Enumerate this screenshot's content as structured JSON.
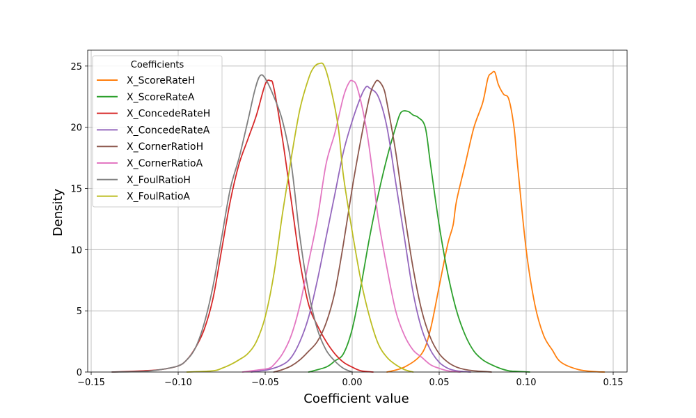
{
  "chart_data": {
    "type": "line",
    "subtype": "kde-density",
    "xlabel": "Coefficient value",
    "ylabel": "Density",
    "xlim": [
      -0.152,
      0.158
    ],
    "ylim": [
      0,
      26.3
    ],
    "xticks": [
      -0.15,
      -0.1,
      -0.05,
      0.0,
      0.05,
      0.1,
      0.15
    ],
    "xtick_labels": [
      "−0.15",
      "−0.10",
      "−0.05",
      "0.00",
      "0.05",
      "0.10",
      "0.15"
    ],
    "yticks": [
      0,
      5,
      10,
      15,
      20,
      25
    ],
    "ytick_labels": [
      "0",
      "5",
      "10",
      "15",
      "20",
      "25"
    ],
    "grid": true,
    "legend": {
      "title": "Coefficients",
      "placement": "top-left"
    },
    "series": [
      {
        "name": "X_ScoreRateH",
        "color": "#ff7f0e",
        "x": [
          0.02,
          0.03,
          0.04,
          0.045,
          0.05,
          0.055,
          0.058,
          0.06,
          0.065,
          0.07,
          0.075,
          0.078,
          0.08,
          0.082,
          0.084,
          0.087,
          0.09,
          0.093,
          0.095,
          0.1,
          0.105,
          0.11,
          0.115,
          0.12,
          0.13,
          0.14,
          0.145
        ],
        "y": [
          0.0,
          0.4,
          1.5,
          3.5,
          7.0,
          10.5,
          12.0,
          14.0,
          17.0,
          20.0,
          22.0,
          24.0,
          24.4,
          24.5,
          23.5,
          22.7,
          22.3,
          20.0,
          17.0,
          10.0,
          5.5,
          3.0,
          1.8,
          0.8,
          0.2,
          0.03,
          0.0
        ]
      },
      {
        "name": "X_ScoreRateA",
        "color": "#2ca02c",
        "x": [
          -0.025,
          -0.015,
          -0.01,
          -0.005,
          0.0,
          0.005,
          0.01,
          0.015,
          0.02,
          0.025,
          0.028,
          0.032,
          0.035,
          0.038,
          0.042,
          0.045,
          0.05,
          0.055,
          0.06,
          0.065,
          0.07,
          0.075,
          0.08,
          0.085,
          0.09,
          0.095,
          0.102
        ],
        "y": [
          0.0,
          0.4,
          0.9,
          1.5,
          3.5,
          7.0,
          11.0,
          14.5,
          17.5,
          20.0,
          21.2,
          21.3,
          21.0,
          20.8,
          20.0,
          17.0,
          12.0,
          8.0,
          5.0,
          3.0,
          1.7,
          1.0,
          0.6,
          0.3,
          0.1,
          0.05,
          0.0
        ]
      },
      {
        "name": "X_ConcedeRateH",
        "color": "#d62728",
        "x": [
          -0.138,
          -0.12,
          -0.11,
          -0.1,
          -0.095,
          -0.09,
          -0.085,
          -0.08,
          -0.075,
          -0.07,
          -0.065,
          -0.06,
          -0.055,
          -0.05,
          -0.047,
          -0.045,
          -0.04,
          -0.035,
          -0.03,
          -0.025,
          -0.02,
          -0.015,
          -0.01,
          -0.005,
          0.0,
          0.005,
          0.012
        ],
        "y": [
          0.0,
          0.1,
          0.2,
          0.5,
          1.0,
          2.0,
          3.5,
          6.0,
          10.0,
          14.0,
          17.0,
          19.0,
          21.0,
          23.5,
          23.8,
          23.2,
          19.0,
          14.0,
          9.0,
          5.5,
          3.8,
          2.5,
          1.5,
          0.8,
          0.4,
          0.1,
          0.0
        ]
      },
      {
        "name": "X_ConcedeRateA",
        "color": "#9467bd",
        "x": [
          -0.058,
          -0.048,
          -0.04,
          -0.035,
          -0.03,
          -0.025,
          -0.02,
          -0.015,
          -0.01,
          -0.005,
          0.0,
          0.005,
          0.008,
          0.01,
          0.015,
          0.02,
          0.025,
          0.03,
          0.035,
          0.04,
          0.045,
          0.05,
          0.055,
          0.06,
          0.068
        ],
        "y": [
          0.0,
          0.2,
          0.6,
          1.2,
          2.5,
          4.5,
          7.5,
          11.0,
          14.5,
          18.0,
          20.5,
          22.5,
          23.3,
          23.2,
          22.5,
          20.0,
          15.5,
          11.0,
          6.5,
          3.5,
          1.8,
          0.8,
          0.3,
          0.1,
          0.0
        ]
      },
      {
        "name": "X_CornerRatioH",
        "color": "#8c564b",
        "x": [
          -0.045,
          -0.04,
          -0.035,
          -0.03,
          -0.025,
          -0.02,
          -0.015,
          -0.01,
          -0.005,
          0.0,
          0.005,
          0.01,
          0.013,
          0.015,
          0.018,
          0.02,
          0.025,
          0.03,
          0.035,
          0.04,
          0.045,
          0.05,
          0.055,
          0.06,
          0.065,
          0.07,
          0.075,
          0.08
        ],
        "y": [
          0.0,
          0.2,
          0.5,
          1.0,
          1.7,
          2.5,
          4.0,
          6.5,
          10.5,
          15.0,
          19.0,
          22.5,
          23.6,
          23.8,
          23.2,
          22.0,
          18.0,
          13.0,
          8.5,
          5.0,
          2.8,
          1.5,
          0.8,
          0.4,
          0.2,
          0.1,
          0.05,
          0.0
        ]
      },
      {
        "name": "X_CornerRatioA",
        "color": "#e377c2",
        "x": [
          -0.063,
          -0.055,
          -0.048,
          -0.045,
          -0.04,
          -0.035,
          -0.03,
          -0.025,
          -0.02,
          -0.015,
          -0.01,
          -0.005,
          -0.002,
          0.0,
          0.003,
          0.008,
          0.012,
          0.015,
          0.02,
          0.025,
          0.03,
          0.035,
          0.04,
          0.045,
          0.05,
          0.055,
          0.062
        ],
        "y": [
          0.0,
          0.15,
          0.3,
          0.6,
          1.5,
          3.0,
          5.5,
          9.0,
          12.5,
          17.0,
          19.5,
          22.5,
          23.6,
          23.8,
          23.2,
          20.0,
          16.0,
          12.5,
          8.5,
          5.0,
          3.0,
          1.8,
          1.2,
          0.6,
          0.3,
          0.1,
          0.0
        ]
      },
      {
        "name": "X_FoulRatioH",
        "color": "#7f7f7f",
        "x": [
          -0.138,
          -0.12,
          -0.11,
          -0.1,
          -0.095,
          -0.09,
          -0.085,
          -0.08,
          -0.075,
          -0.07,
          -0.065,
          -0.06,
          -0.056,
          -0.053,
          -0.05,
          -0.045,
          -0.04,
          -0.035,
          -0.03,
          -0.025,
          -0.02,
          -0.015,
          -0.01,
          -0.005,
          0.0
        ],
        "y": [
          0.0,
          0.05,
          0.2,
          0.5,
          1.0,
          2.0,
          4.0,
          7.0,
          11.0,
          15.0,
          17.5,
          20.5,
          23.0,
          24.2,
          24.0,
          22.5,
          20.5,
          17.0,
          11.0,
          6.5,
          3.5,
          1.8,
          0.9,
          0.3,
          0.0
        ]
      },
      {
        "name": "X_FoulRatioA",
        "color": "#bcbd22",
        "x": [
          -0.095,
          -0.08,
          -0.075,
          -0.07,
          -0.065,
          -0.06,
          -0.055,
          -0.05,
          -0.045,
          -0.04,
          -0.035,
          -0.03,
          -0.025,
          -0.022,
          -0.019,
          -0.016,
          -0.012,
          -0.008,
          -0.005,
          0.0,
          0.005,
          0.01,
          0.015,
          0.02,
          0.025,
          0.03,
          0.035
        ],
        "y": [
          0.0,
          0.1,
          0.3,
          0.6,
          1.0,
          1.5,
          2.5,
          4.5,
          8.0,
          13.0,
          17.5,
          21.5,
          24.0,
          24.9,
          25.2,
          25.0,
          23.0,
          20.0,
          16.0,
          11.5,
          7.5,
          4.5,
          2.3,
          1.2,
          0.6,
          0.2,
          0.0
        ]
      }
    ]
  }
}
